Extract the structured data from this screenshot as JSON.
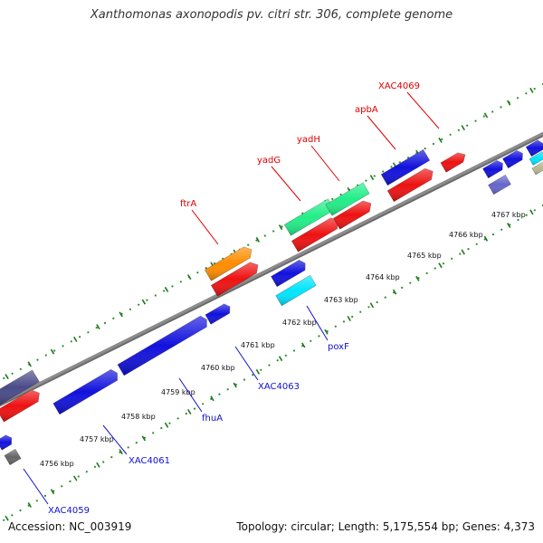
{
  "title": "Xanthomonas axonopodis pv. citri str. 306, complete genome",
  "footer": {
    "accession": "Accession: NC_003919",
    "summary": "Topology: circular; Length: 5,175,554 bp; Genes: 4,373"
  },
  "colors": {
    "backbone": "#8c8c8c",
    "dots": "#2e8b2e",
    "forward_label": "#dd0000",
    "reverse_label": "#1010cc"
  },
  "ticks": [
    {
      "label": "4756 kbp"
    },
    {
      "label": "4757 kbp"
    },
    {
      "label": "4758 kbp"
    },
    {
      "label": "4759 kbp"
    },
    {
      "label": "4760 kbp"
    },
    {
      "label": "4761 kbp"
    },
    {
      "label": "4762 kbp"
    },
    {
      "label": "4763 kbp"
    },
    {
      "label": "4764 kbp"
    },
    {
      "label": "4765 kbp"
    },
    {
      "label": "4766 kbp"
    },
    {
      "label": "4767 kbp"
    }
  ],
  "labels": [
    {
      "text": "ftrA",
      "strand": "forward"
    },
    {
      "text": "yadG",
      "strand": "forward"
    },
    {
      "text": "yadH",
      "strand": "forward"
    },
    {
      "text": "apbA",
      "strand": "forward"
    },
    {
      "text": "XAC4069",
      "strand": "forward"
    },
    {
      "text": "XAC4059",
      "strand": "reverse"
    },
    {
      "text": "XAC4061",
      "strand": "reverse"
    },
    {
      "text": "fhuA",
      "strand": "reverse"
    },
    {
      "text": "XAC4063",
      "strand": "reverse"
    },
    {
      "text": "poxF",
      "strand": "reverse"
    }
  ],
  "features": [
    {
      "color": "#4a4a8a",
      "name": "forward-feature-purple-left"
    },
    {
      "color": "#ee1111",
      "name": "forward-cds-left"
    },
    {
      "color": "#ff8c00",
      "name": "ftrA-gene"
    },
    {
      "color": "#ee1111",
      "name": "ftrA-cds"
    },
    {
      "color": "#22ee88",
      "name": "yadG-gene"
    },
    {
      "color": "#ee1111",
      "name": "yadG-cds"
    },
    {
      "color": "#22ee88",
      "name": "yadH-gene"
    },
    {
      "color": "#ee1111",
      "name": "yadH-cds"
    },
    {
      "color": "#1111dd",
      "name": "apbA-gene"
    },
    {
      "color": "#ee1111",
      "name": "apbA-cds"
    },
    {
      "color": "#ee1111",
      "name": "XAC4069-cds"
    },
    {
      "color": "#1111dd",
      "name": "forward-gene-right-1"
    },
    {
      "color": "#1111dd",
      "name": "forward-gene-right-2"
    },
    {
      "color": "#1111dd",
      "name": "forward-gene-right-3"
    },
    {
      "color": "#00e5ff",
      "name": "forward-feature-cyan-right"
    },
    {
      "color": "#b8b890",
      "name": "forward-feature-tan-right"
    },
    {
      "color": "#1111dd",
      "name": "XAC4059-gene"
    },
    {
      "color": "#666666",
      "name": "XAC4059-pseudo"
    },
    {
      "color": "#1111dd",
      "name": "XAC4061-gene"
    },
    {
      "color": "#1111dd",
      "name": "fhuA-gene"
    },
    {
      "color": "#1111dd",
      "name": "XAC4063-gene"
    },
    {
      "color": "#1111dd",
      "name": "poxF-gene"
    },
    {
      "color": "#00e5ff",
      "name": "poxF-feature"
    },
    {
      "color": "#6666cc",
      "name": "reverse-feature-lavender-right"
    }
  ]
}
